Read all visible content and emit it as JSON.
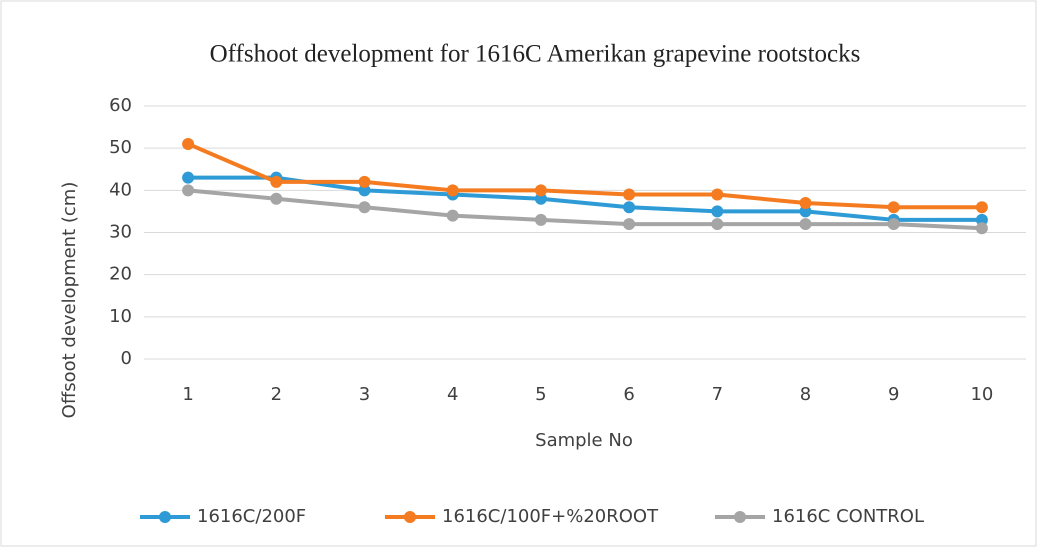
{
  "chart_data": {
    "type": "line",
    "title": "Offshoot development for 1616C Amerikan grapevine rootstocks",
    "xlabel": "Sample No",
    "ylabel": "Offsoot development (cm)",
    "categories": [
      "1",
      "2",
      "3",
      "4",
      "5",
      "6",
      "7",
      "8",
      "9",
      "10"
    ],
    "series": [
      {
        "name": "1616C/200F",
        "color": "#2e9bd6",
        "values": [
          43,
          43,
          40,
          39,
          38,
          36,
          35,
          35,
          33,
          33
        ]
      },
      {
        "name": "1616C/100F+%20ROOT",
        "color": "#f47b20",
        "values": [
          51,
          42,
          42,
          40,
          40,
          39,
          39,
          37,
          36,
          36
        ]
      },
      {
        "name": "1616C CONTROL",
        "color": "#a5a5a5",
        "values": [
          40,
          38,
          36,
          34,
          33,
          32,
          32,
          32,
          32,
          31
        ]
      }
    ],
    "ylim": [
      0,
      60
    ],
    "yticks": [
      0,
      10,
      20,
      30,
      40,
      50,
      60
    ],
    "grid": true,
    "legend": "bottom"
  }
}
